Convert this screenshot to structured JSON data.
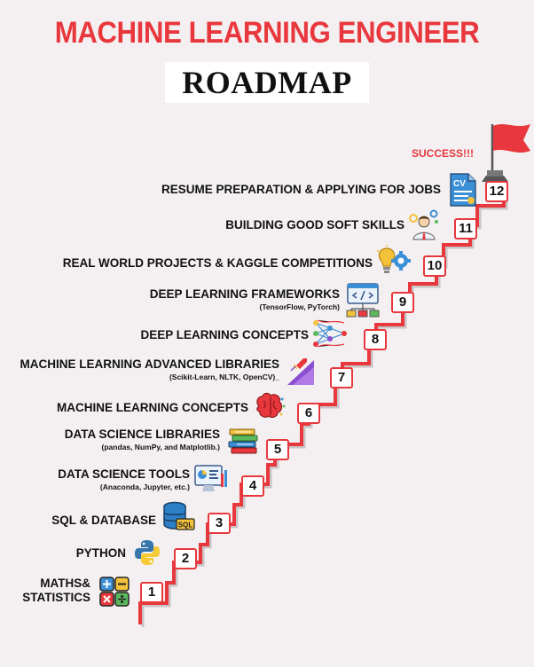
{
  "header": {
    "title": "MACHINE LEARNING ENGINEER",
    "subtitle": "ROADMAP"
  },
  "success_label": "SUCCESS!!!",
  "steps": [
    {
      "number": "1",
      "label": "MATHS&",
      "label2": "STATISTICS",
      "sub": "",
      "icon": "calculator-icon"
    },
    {
      "number": "2",
      "label": "PYTHON",
      "sub": "",
      "icon": "python-logo-icon"
    },
    {
      "number": "3",
      "label": "SQL & DATABASE",
      "sub": "",
      "icon": "database-icon"
    },
    {
      "number": "4",
      "label": "DATA SCIENCE TOOLS",
      "sub": "(Anaconda, Jupyter, etc.)",
      "icon": "dashboard-icon"
    },
    {
      "number": "5",
      "label": "DATA SCIENCE LIBRARIES",
      "sub": "(pandas, NumPy, and Matplotlib.)",
      "icon": "books-icon"
    },
    {
      "number": "6",
      "label": "MACHINE LEARNING CONCEPTS",
      "sub": "",
      "icon": "brain-icon"
    },
    {
      "number": "7",
      "label": "MACHINE LEARNING ADVANCED LIBRARIES",
      "sub": "(Scikit-Learn, NLTK, OpenCV)_",
      "icon": "growth-chart-icon"
    },
    {
      "number": "8",
      "label": "DEEP LEARNING CONCEPTS",
      "sub": "",
      "icon": "neural-network-icon"
    },
    {
      "number": "9",
      "label": "DEEP LEARNING FRAMEWORKS",
      "sub": "(TensorFlow, PyTorch)",
      "icon": "code-window-icon"
    },
    {
      "number": "10",
      "label": "REAL WORLD PROJECTS & KAGGLE COMPETITIONS",
      "sub": "",
      "icon": "lightbulb-gear-icon"
    },
    {
      "number": "11",
      "label": "BUILDING GOOD SOFT SKILLS",
      "sub": "",
      "icon": "person-gears-icon"
    },
    {
      "number": "12",
      "label": "RESUME PREPARATION & APPLYING FOR JOBS",
      "sub": "",
      "icon": "cv-document-icon",
      "icon_text": "CV"
    }
  ],
  "colors": {
    "accent": "#e8383d",
    "stair_shadow": "#c9c5c6"
  }
}
